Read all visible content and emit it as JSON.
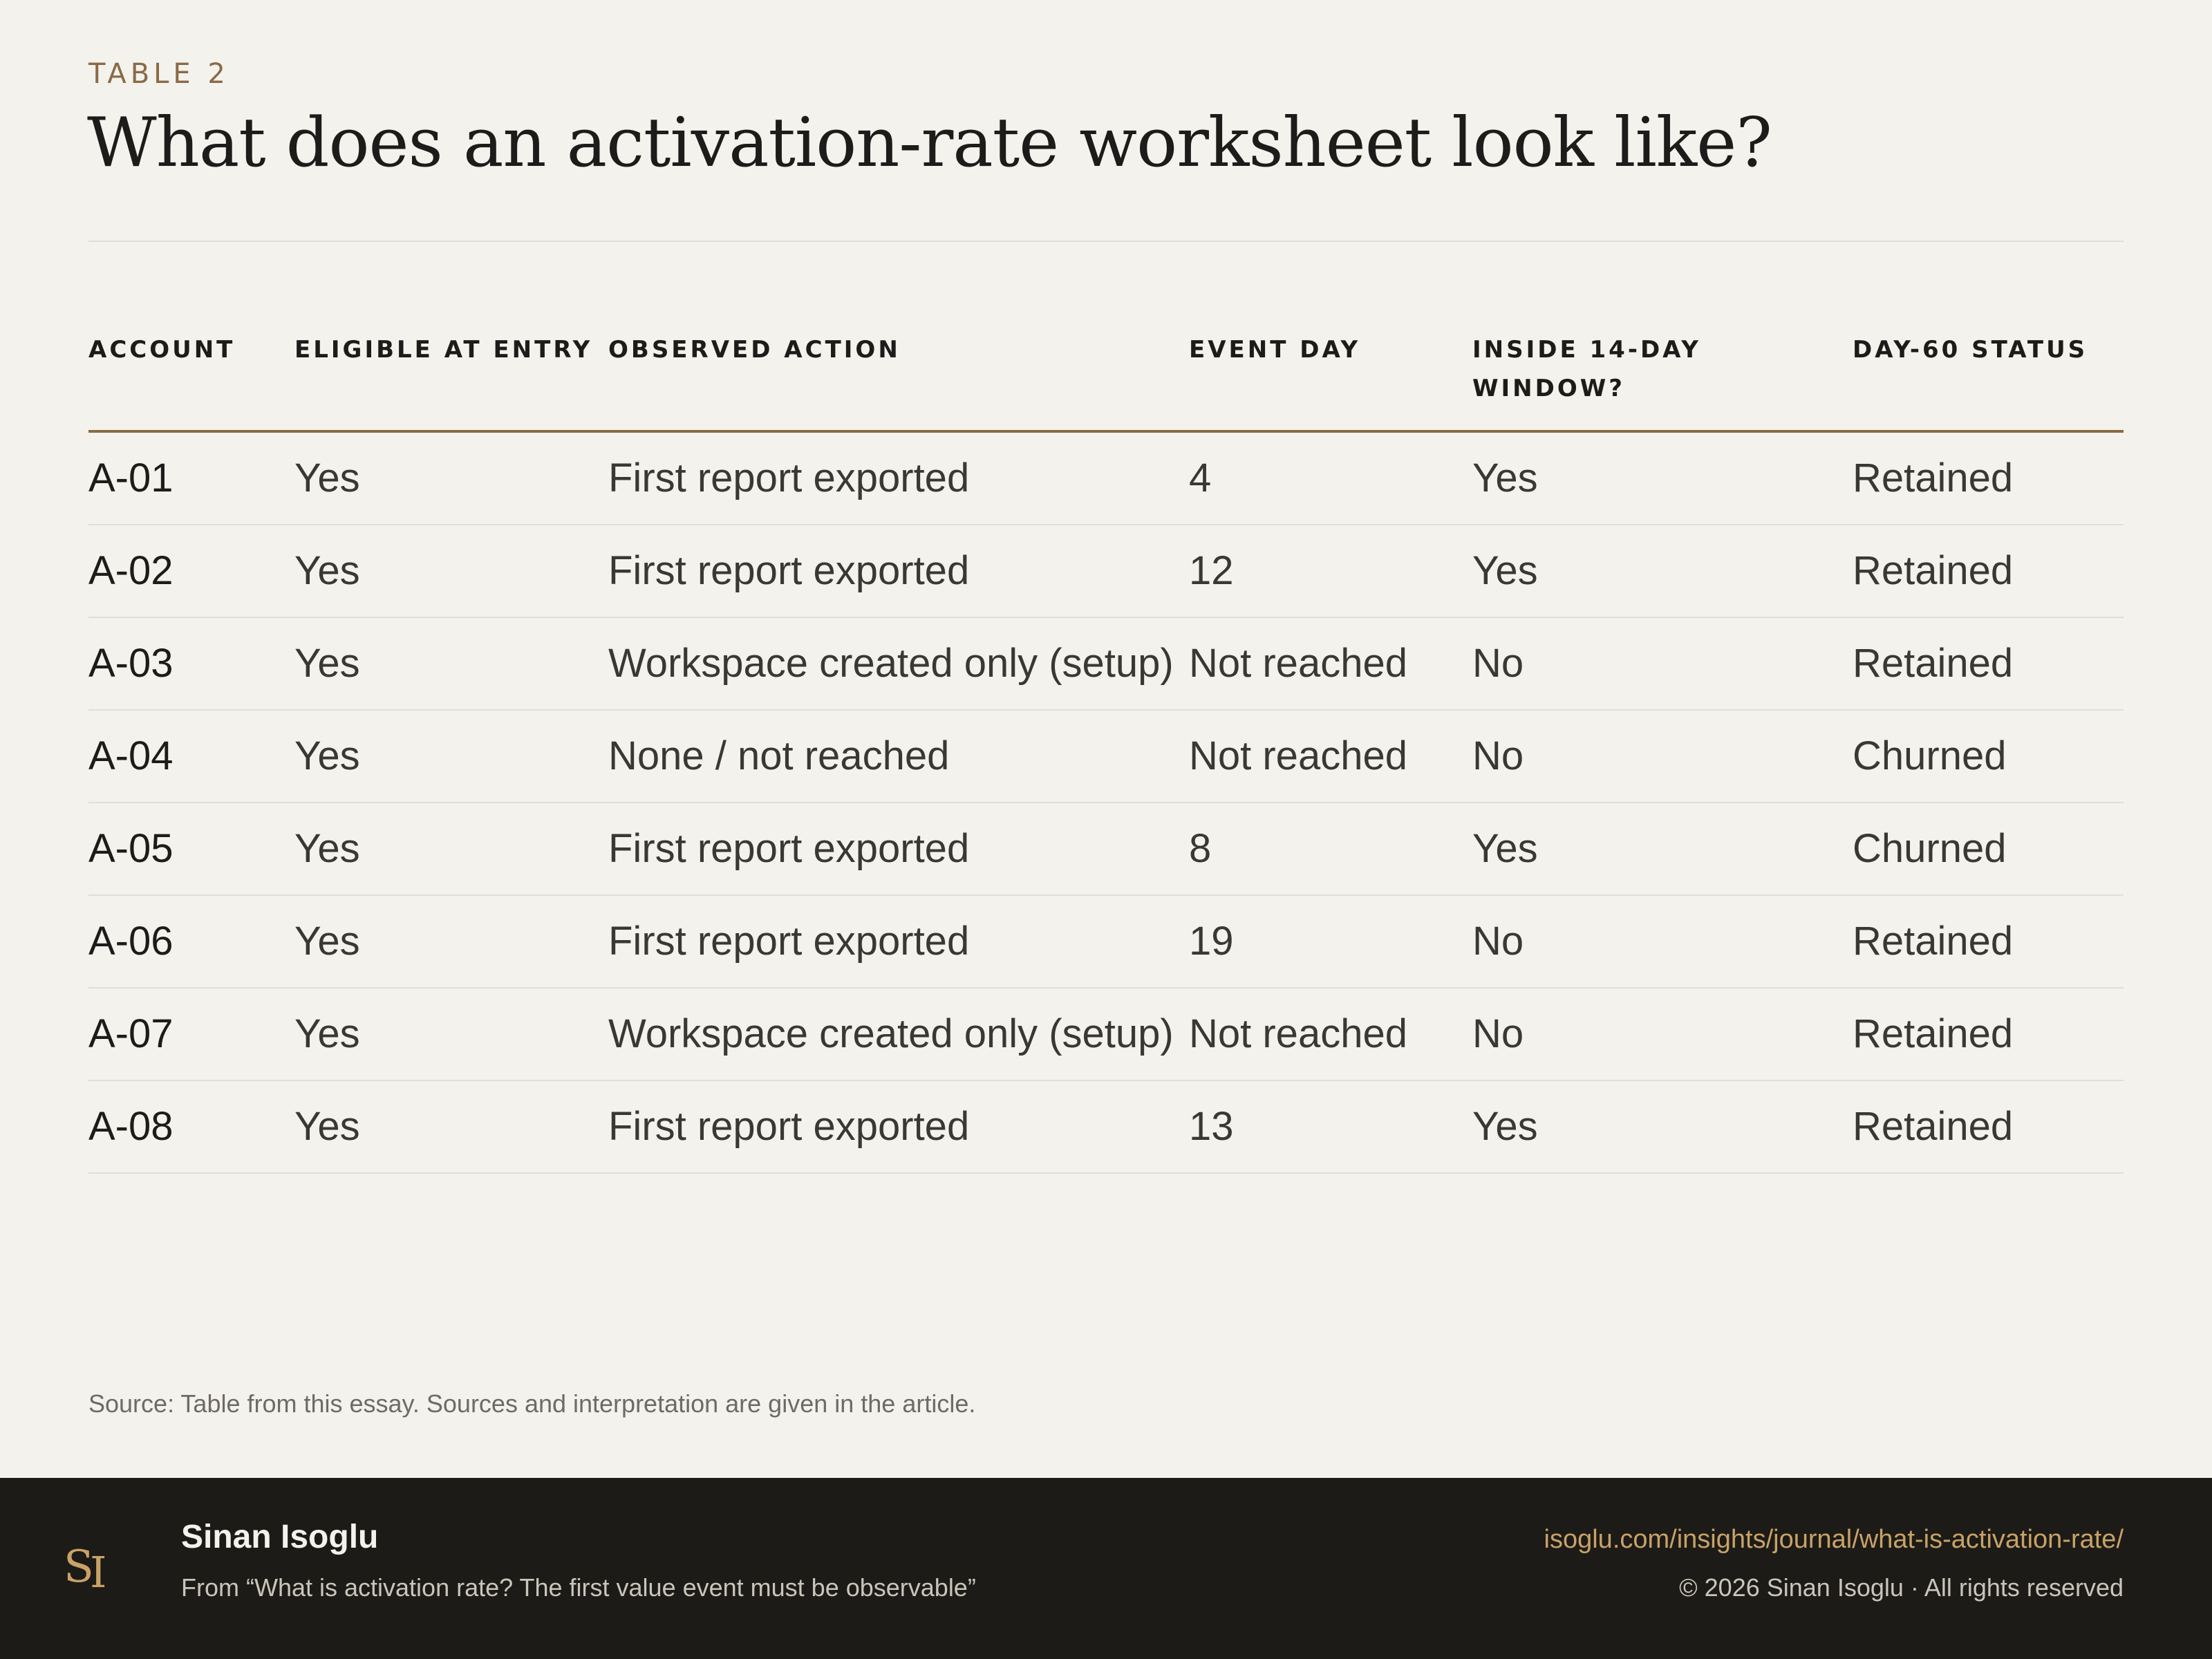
{
  "header": {
    "eyebrow": "TABLE 2",
    "title": "What does an activation-rate worksheet look like?"
  },
  "table": {
    "columns": [
      "ACCOUNT",
      "ELIGIBLE AT ENTRY",
      "OBSERVED ACTION",
      "EVENT DAY",
      "INSIDE 14-DAY WINDOW?",
      "DAY-60 STATUS"
    ],
    "rows": [
      [
        "A-01",
        "Yes",
        "First report exported",
        "4",
        "Yes",
        "Retained"
      ],
      [
        "A-02",
        "Yes",
        "First report exported",
        "12",
        "Yes",
        "Retained"
      ],
      [
        "A-03",
        "Yes",
        "Workspace created only (setup)",
        "Not reached",
        "No",
        "Retained"
      ],
      [
        "A-04",
        "Yes",
        "None / not reached",
        "Not reached",
        "No",
        "Churned"
      ],
      [
        "A-05",
        "Yes",
        "First report exported",
        "8",
        "Yes",
        "Churned"
      ],
      [
        "A-06",
        "Yes",
        "First report exported",
        "19",
        "No",
        "Retained"
      ],
      [
        "A-07",
        "Yes",
        "Workspace created only (setup)",
        "Not reached",
        "No",
        "Retained"
      ],
      [
        "A-08",
        "Yes",
        "First report exported",
        "13",
        "Yes",
        "Retained"
      ]
    ]
  },
  "source": "Source: Table from this essay. Sources and interpretation are given in the article.",
  "footer": {
    "monogram": "SI",
    "author": "Sinan Isoglu",
    "from": "From “What is activation rate? The first value event must be observable”",
    "url": "isoglu.com/insights/journal/what-is-activation-rate/",
    "copyright": "© 2026 Sinan Isoglu · All rights reserved",
    "accent_color": "#c9a267"
  }
}
